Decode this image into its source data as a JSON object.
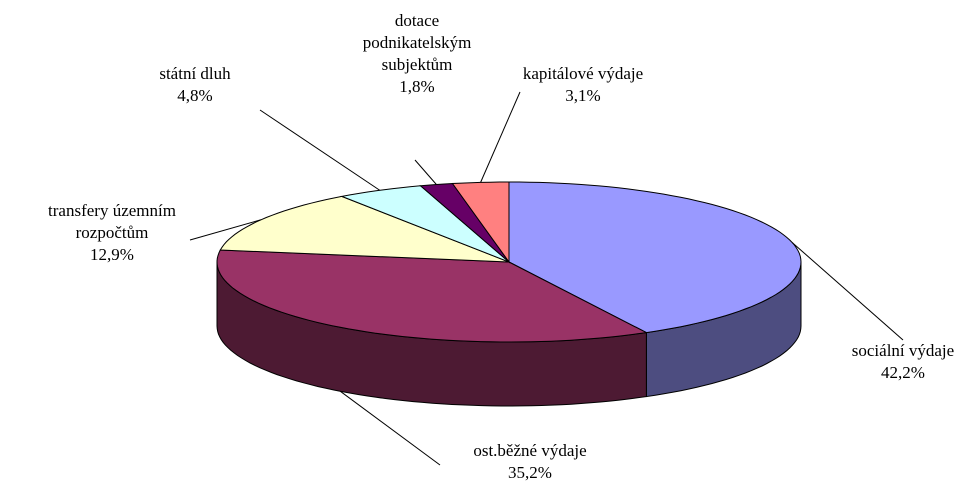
{
  "chart_data": {
    "type": "pie3d",
    "categories": [
      "sociální výdaje",
      "ost.běžné výdaje",
      "transfery územním rozpočtům",
      "státní dluh",
      "dotace podnikatelským subjektům",
      "kapitálové výdaje"
    ],
    "values": [
      42.2,
      35.2,
      12.9,
      4.8,
      1.8,
      3.1
    ],
    "value_labels": [
      "42,2%",
      "35,2%",
      "12,9%",
      "4,8%",
      "1,8%",
      "3,1%"
    ],
    "colors": [
      "#9999ff",
      "#993366",
      "#ffffcc",
      "#ccffff",
      "#660066",
      "#ff8080"
    ],
    "side_colors": [
      "#4d4d80",
      "#4d1a33",
      "#80806a",
      "#668080",
      "#330033",
      "#804040"
    ]
  }
}
